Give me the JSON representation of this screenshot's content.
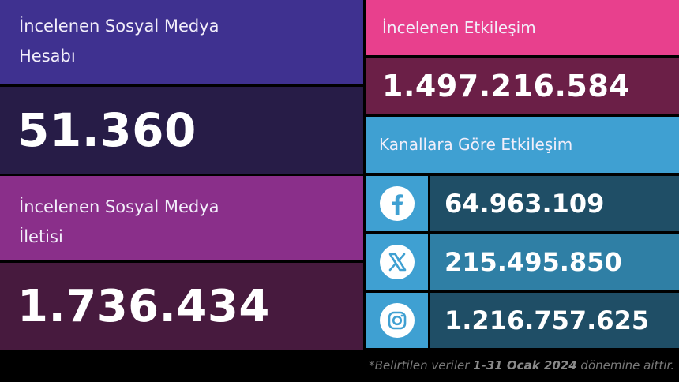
{
  "accounts": {
    "label_line1": "İncelenen Sosyal Medya",
    "label_line2": "Hesabı",
    "value": "51.360"
  },
  "posts": {
    "label_line1": "İncelenen Sosyal Medya",
    "label_line2": "İletisi",
    "value": "1.736.434"
  },
  "engagement": {
    "label": "İncelenen Etkileşim",
    "value": "1.497.216.584"
  },
  "channels": {
    "title": "Kanallara Göre Etkileşim",
    "items": [
      {
        "icon": "facebook-icon",
        "value": "64.963.109"
      },
      {
        "icon": "x-twitter-icon",
        "value": "215.495.850"
      },
      {
        "icon": "instagram-icon",
        "value": "1.216.757.625"
      }
    ]
  },
  "footnote": {
    "prefix": "*Belirtilen veriler ",
    "period": "1-31 Ocak 2024",
    "suffix": " dönemine aittir."
  },
  "colors": {
    "accounts_header": "#3f3190",
    "posts_header": "#8a2f8a",
    "engagement_header": "#e8408d",
    "channels_header": "#3fa0d2"
  }
}
